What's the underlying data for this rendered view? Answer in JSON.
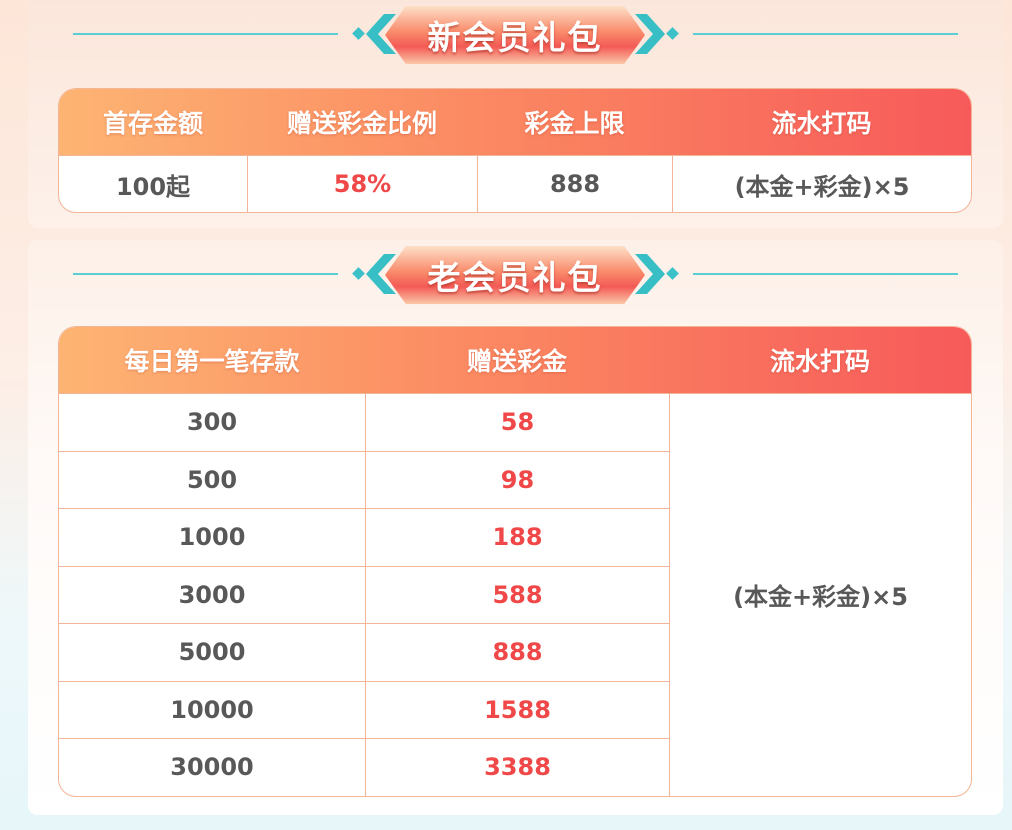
{
  "new_member": {
    "title": "新会员礼包",
    "headers": [
      "首存金额",
      "赠送彩金比例",
      "彩金上限",
      "流水打码"
    ],
    "row": [
      "100起",
      "58%",
      "888",
      "(本金+彩金)×5"
    ]
  },
  "old_member": {
    "title": "老会员礼包",
    "headers": [
      "每日第一笔存款",
      "赠送彩金",
      "流水打码"
    ],
    "rows": [
      [
        "300",
        "58"
      ],
      [
        "500",
        "98"
      ],
      [
        "1000",
        "188"
      ],
      [
        "3000",
        "588"
      ],
      [
        "5000",
        "888"
      ],
      [
        "10000",
        "1588"
      ],
      [
        "30000",
        "3388"
      ]
    ],
    "turnover": "(本金+彩金)×5"
  },
  "colors": {
    "header_start": "#fdb473",
    "header_end": "#f75a5a",
    "highlight": "#f04848",
    "accent": "#38bfc6"
  }
}
